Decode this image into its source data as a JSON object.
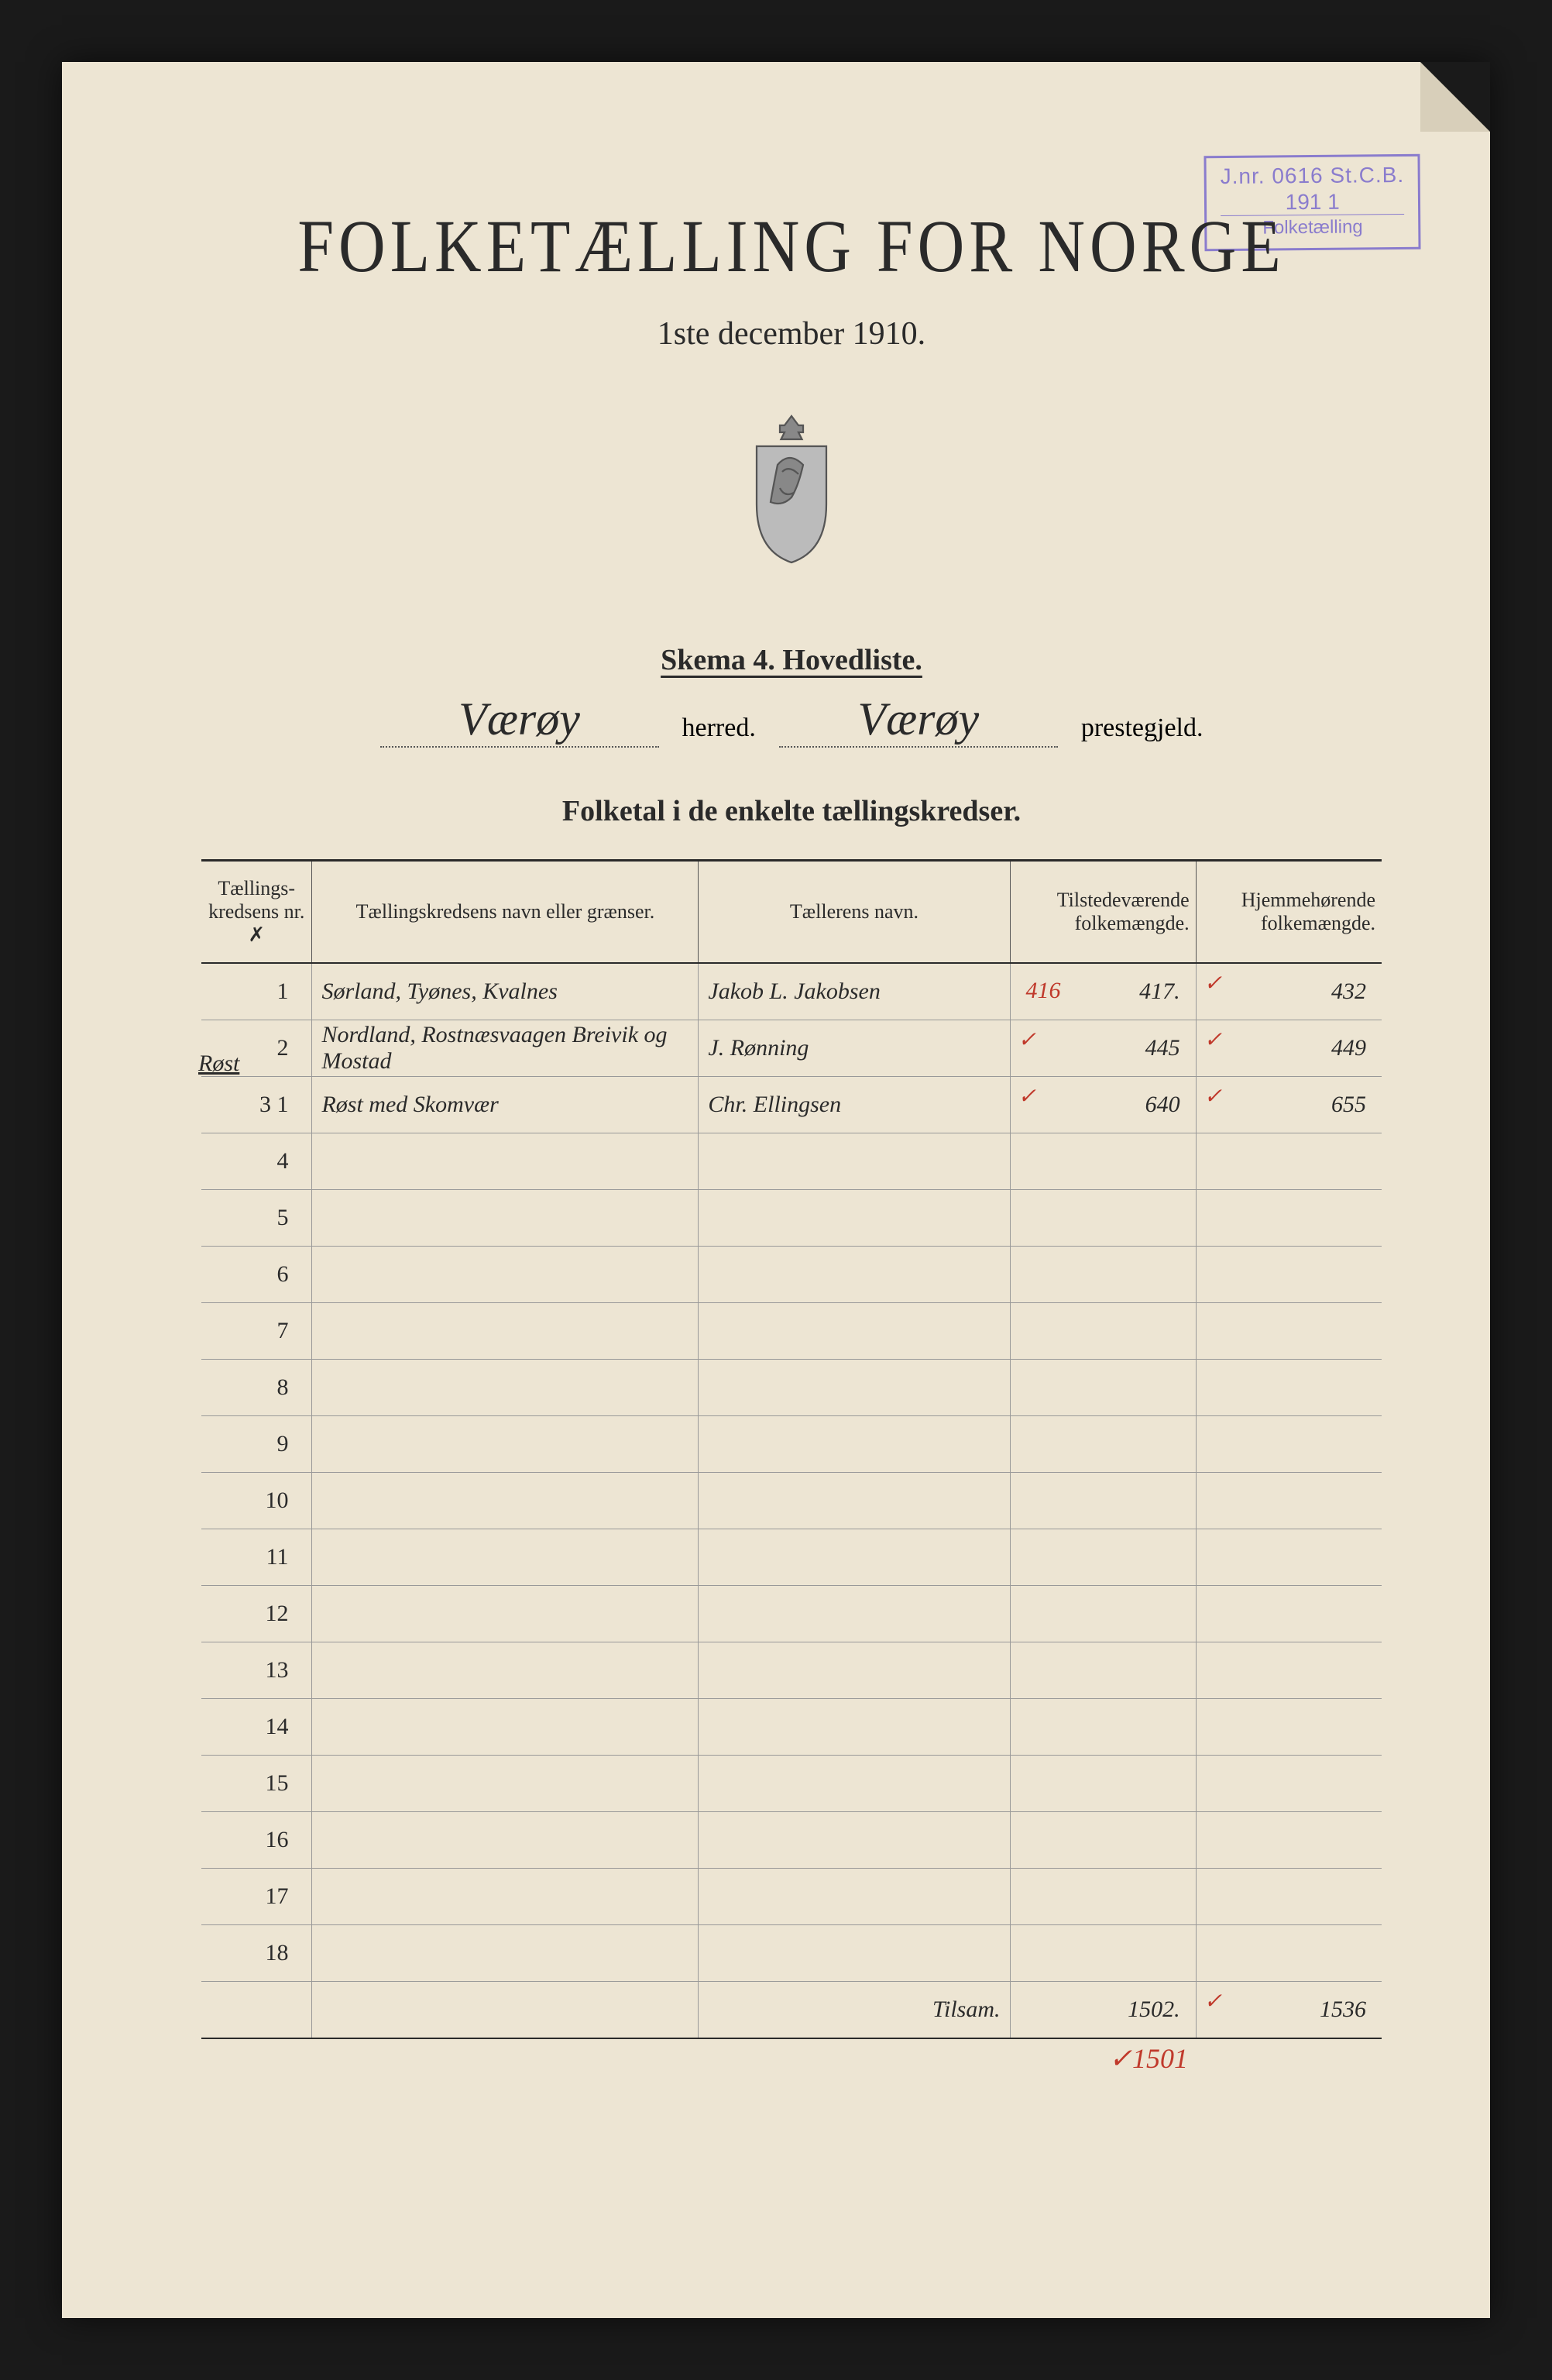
{
  "stamp": {
    "line1": "J.nr. 0616 St.C.B.",
    "line2": "191 1",
    "line3": "Folketælling"
  },
  "title": "FOLKETÆLLING FOR NORGE",
  "subtitle": "1ste december 1910.",
  "schema_heading": "Skema 4.   Hovedliste.",
  "herred_label": "herred.",
  "prestegjeld_label": "prestegjeld.",
  "herred_value": "Værøy",
  "prestegjeld_value": "Værøy",
  "table_title": "Folketal i de enkelte tællingskredser.",
  "columns": {
    "nr": "Tællings-\nkredsens nr.",
    "nr_mark": "✗",
    "name": "Tællingskredsens navn eller grænser.",
    "teller": "Tællerens navn.",
    "tilst": "Tilstedeværende\nfolkemængde.",
    "hjem": "Hjemmehørende\nfolkemængde."
  },
  "side_annot": "Røst",
  "rows": [
    {
      "nr": "1",
      "name": "Sørland, Tyønes, Kvalnes",
      "teller": "Jakob L. Jakobsen",
      "tilst": "417.",
      "tilst_red": "416",
      "tilst_tick": "✓",
      "hjem": "432",
      "hjem_tick": "✓"
    },
    {
      "nr": "2",
      "name": "Nordland, Rostnæsvaagen Breivik og Mostad",
      "teller": "J. Rønning",
      "tilst": "445",
      "tilst_tick": "✓",
      "hjem": "449",
      "hjem_tick": "✓"
    },
    {
      "nr": "3 1",
      "name": "Røst med Skomvær",
      "teller": "Chr. Ellingsen",
      "tilst": "640",
      "tilst_tick": "✓",
      "hjem": "655",
      "hjem_tick": "✓"
    }
  ],
  "empty_row_numbers": [
    "4",
    "5",
    "6",
    "7",
    "8",
    "9",
    "10",
    "11",
    "12",
    "13",
    "14",
    "15",
    "16",
    "17",
    "18"
  ],
  "total": {
    "label": "Tilsam.",
    "tilst": "1502.",
    "hjem": "1536",
    "hjem_tick": "✓",
    "below_tilst": "✓1501"
  },
  "colors": {
    "paper": "#ede5d3",
    "ink": "#2a2a2a",
    "stamp": "#6a5acb",
    "red": "#c0392b",
    "background": "#1a1a1a"
  }
}
